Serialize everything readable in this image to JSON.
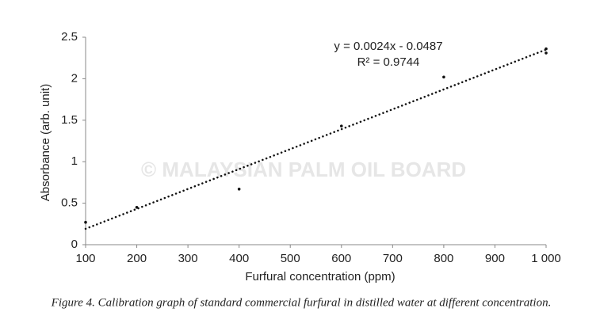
{
  "chart_data": {
    "type": "scatter",
    "x_label": "Furfural concentration (ppm)",
    "y_label": "Absorbance (arb. unit)",
    "caption": "Figure 4. Calibration graph of standard commercial furfural in distilled water at different concentration.",
    "watermark": "© MALAYSIAN PALM OIL BOARD",
    "equation": "y = 0.0024x - 0.0487",
    "r_squared": "R² = 0.9744",
    "trendline": {
      "slope": 0.0024,
      "intercept": -0.0487
    },
    "x": [
      100,
      200,
      400,
      600,
      800,
      1000,
      1000
    ],
    "values": [
      0.27,
      0.45,
      0.67,
      1.43,
      2.02,
      2.36,
      2.31
    ],
    "color": "#111111",
    "xlim": [
      100,
      1000
    ],
    "xticks": [
      100,
      200,
      300,
      400,
      500,
      600,
      700,
      800,
      900,
      {
        "value": 1000,
        "label": "1 000"
      }
    ],
    "ylim": [
      0,
      2.5
    ],
    "yticks": [
      0,
      0.5,
      1,
      1.5,
      2,
      2.5
    ]
  }
}
